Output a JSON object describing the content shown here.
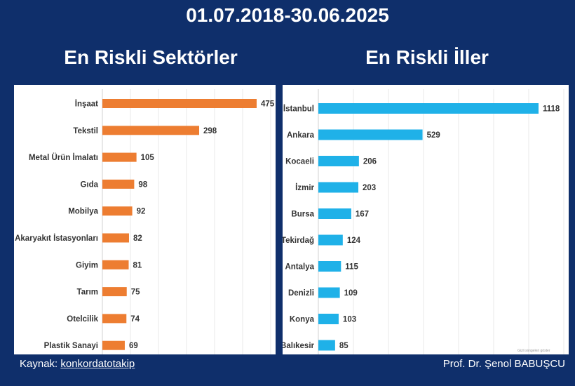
{
  "header": {
    "date_range": "01.07.2018-30.06.2025"
  },
  "footer": {
    "source_prefix": "Kaynak: ",
    "source_link": "konkordatotakip",
    "author": "Prof. Dr. Şenol BABUŞCU"
  },
  "watermark": "Gizli simgeleri göster",
  "chart_data": [
    {
      "type": "bar",
      "orientation": "horizontal",
      "title": "En Riskli Sektörler",
      "color": "#ed7d31",
      "categories": [
        "İnşaat",
        "Tekstil",
        "Metal Ürün İmalatı",
        "Gıda",
        "Mobilya",
        "Akaryakıt İstasyonları",
        "Giyim",
        "Tarım",
        "Otelcilik",
        "Plastik Sanayi"
      ],
      "values": [
        475,
        298,
        105,
        98,
        92,
        82,
        81,
        75,
        74,
        69
      ],
      "xlim": [
        0,
        475
      ],
      "grid": true
    },
    {
      "type": "bar",
      "orientation": "horizontal",
      "title": "En Riskli İller",
      "color": "#1fb1e8",
      "categories": [
        "İstanbul",
        "Ankara",
        "Kocaeli",
        "İzmir",
        "Bursa",
        "Tekirdağ",
        "Antalya",
        "Denizli",
        "Konya",
        "Balıkesir"
      ],
      "values": [
        1118,
        529,
        206,
        203,
        167,
        124,
        115,
        109,
        103,
        85
      ],
      "xlim": [
        0,
        1118
      ],
      "grid": true
    }
  ]
}
